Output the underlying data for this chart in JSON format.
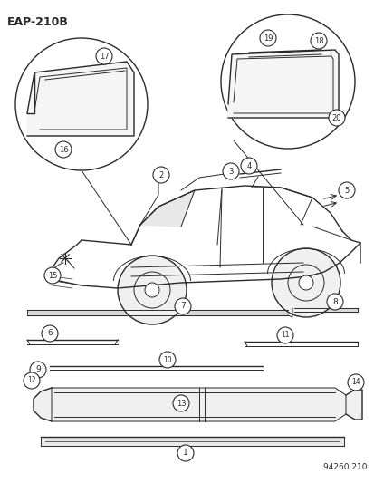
{
  "title": "EAP-210B",
  "part_number": "94260 210",
  "bg_color": "#ffffff",
  "line_color": "#2a2a2a",
  "fig_width": 4.14,
  "fig_height": 5.33,
  "dpi": 100
}
